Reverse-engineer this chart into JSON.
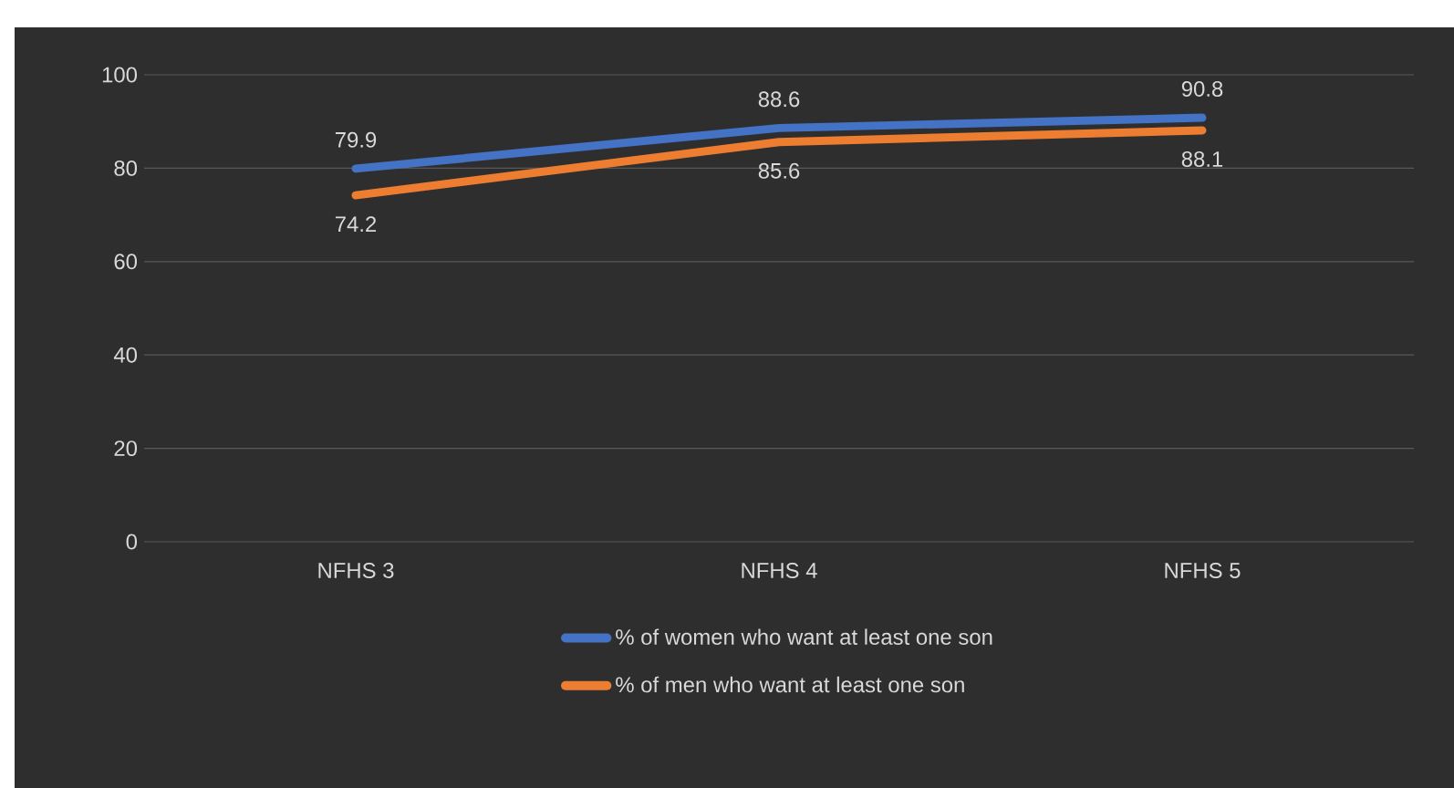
{
  "chart_data": {
    "type": "line",
    "categories": [
      "NFHS 3",
      "NFHS 4",
      "NFHS 5"
    ],
    "series": [
      {
        "name": "% of women who want at least one son",
        "color": "#4472c4",
        "values": [
          79.9,
          88.6,
          90.8
        ]
      },
      {
        "name": "% of men who want at least one son",
        "color": "#ed7d31",
        "values": [
          74.2,
          85.6,
          88.1
        ]
      }
    ],
    "ylim": [
      0,
      100
    ],
    "yticks": [
      0,
      20,
      40,
      60,
      80,
      100
    ],
    "grid": "y",
    "legend": "bottom",
    "data_labels": true,
    "marker": "none",
    "line_style": "solid"
  }
}
